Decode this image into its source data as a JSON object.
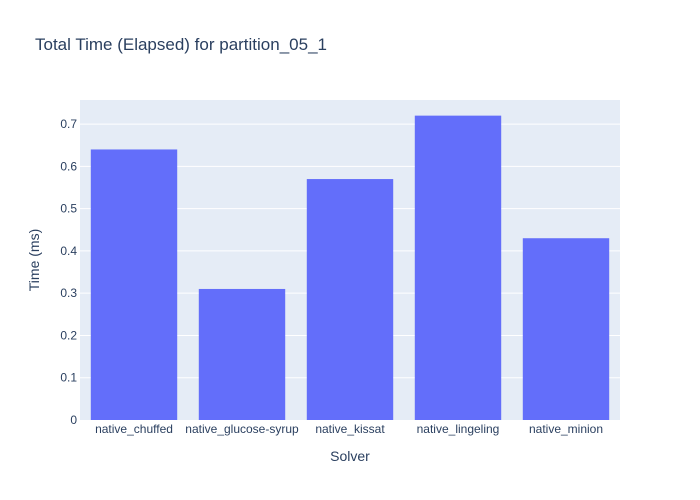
{
  "chart_data": {
    "type": "bar",
    "title": "Total Time (Elapsed) for partition_05_1",
    "xlabel": "Solver",
    "ylabel": "Time (ms)",
    "categories": [
      "native_chuffed",
      "native_glucose-syrup",
      "native_kissat",
      "native_lingeling",
      "native_minion"
    ],
    "values": [
      0.64,
      0.31,
      0.57,
      0.72,
      0.43
    ],
    "ylim": [
      0,
      0.757
    ],
    "yticks": [
      0,
      0.1,
      0.2,
      0.3,
      0.4,
      0.5,
      0.6,
      0.7
    ],
    "ytick_labels": [
      "0",
      "0.1",
      "0.2",
      "0.3",
      "0.4",
      "0.5",
      "0.6",
      "0.7"
    ],
    "grid": true,
    "legend": "none",
    "colors": {
      "bar": "#636efa",
      "plot_background": "#e5ecf6",
      "gridline": "#ffffff",
      "text": "#2a3f5f"
    }
  }
}
